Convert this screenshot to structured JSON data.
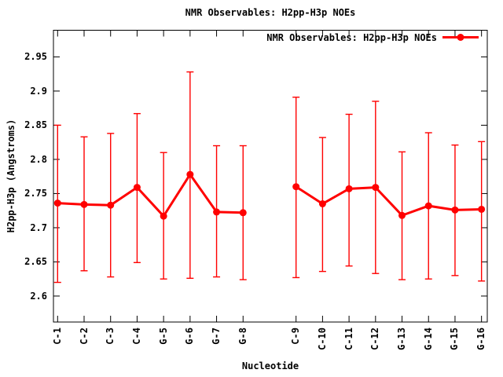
{
  "chart_data": {
    "type": "line",
    "title": "NMR Observables: H2pp-H3p NOEs",
    "legend_label": "NMR Observables: H2pp-H3p NOEs",
    "xlabel": "Nucleotide",
    "ylabel": "H2pp-H3p (Angstroms)",
    "series_color": "#ff0000",
    "axis_color": "#000000",
    "categories": [
      "C-1",
      "C-2",
      "C-3",
      "C-4",
      "G-5",
      "G-6",
      "G-7",
      "G-8",
      "C-9",
      "C-10",
      "C-11",
      "C-12",
      "G-13",
      "G-14",
      "G-15",
      "G-16"
    ],
    "slots": [
      1,
      2,
      3,
      4,
      5,
      6,
      7,
      8,
      10,
      11,
      12,
      13,
      14,
      15,
      16,
      17
    ],
    "values": [
      2.736,
      2.734,
      2.733,
      2.759,
      2.717,
      2.778,
      2.723,
      2.722,
      2.76,
      2.735,
      2.757,
      2.759,
      2.718,
      2.732,
      2.726,
      2.727
    ],
    "err_hi": [
      2.85,
      2.833,
      2.838,
      2.867,
      2.81,
      2.928,
      2.82,
      2.82,
      2.891,
      2.832,
      2.866,
      2.885,
      2.811,
      2.839,
      2.821,
      2.826
    ],
    "err_lo": [
      2.62,
      2.637,
      2.628,
      2.649,
      2.625,
      2.626,
      2.628,
      2.624,
      2.627,
      2.636,
      2.644,
      2.633,
      2.624,
      2.625,
      2.63,
      2.622
    ],
    "yticks": [
      2.6,
      2.65,
      2.7,
      2.75,
      2.8,
      2.85,
      2.9,
      2.95
    ],
    "ytick_labels": [
      "2.6",
      "2.65",
      "2.7",
      "2.75",
      "2.8",
      "2.85",
      "2.9",
      "2.95"
    ],
    "ylim": [
      2.562,
      2.989
    ],
    "grid": "off",
    "legend_position": "top-right-inside",
    "line_break_between": [
      "G-8",
      "C-9"
    ]
  }
}
